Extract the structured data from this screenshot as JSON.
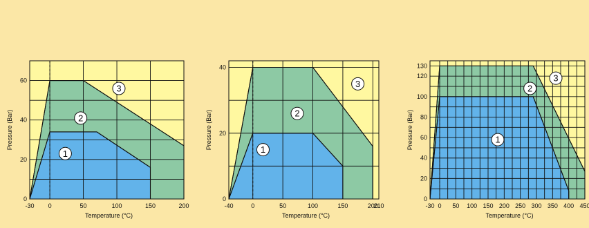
{
  "colors": {
    "page_background": "#fbe7a6",
    "zone_3": "#fff8a0",
    "zone_2": "#8dc9a4",
    "zone_1": "#62b3ea",
    "grid": "#111111",
    "badge_fill": "#ffffff"
  },
  "chart_data": [
    {
      "type": "area",
      "xlabel": "Temperature (°C)",
      "ylabel": "Pressure (Bar)",
      "xlim": [
        -30,
        200
      ],
      "ylim": [
        0,
        70
      ],
      "xticks": [
        -30,
        0,
        50,
        100,
        150,
        200
      ],
      "yticks": [
        0,
        20,
        40,
        60
      ],
      "x_grid": [
        -30,
        0,
        50,
        100,
        150,
        200
      ],
      "y_grid": [
        0,
        10,
        20,
        30,
        40,
        50,
        60,
        70
      ],
      "ref_line_x": 0,
      "series": [
        {
          "label": "3",
          "points": [
            [
              -30,
              0
            ],
            [
              200,
              0
            ],
            [
              200,
              70
            ],
            [
              -30,
              70
            ]
          ],
          "badge": [
            103,
            56
          ]
        },
        {
          "label": "2",
          "points": [
            [
              -30,
              0
            ],
            [
              0,
              60
            ],
            [
              50,
              60
            ],
            [
              200,
              27
            ],
            [
              200,
              0
            ]
          ],
          "badge": [
            46,
            41
          ]
        },
        {
          "label": "1",
          "points": [
            [
              -30,
              0
            ],
            [
              0,
              34
            ],
            [
              70,
              34
            ],
            [
              150,
              16
            ],
            [
              150,
              0
            ]
          ],
          "badge": [
            23,
            23
          ]
        }
      ]
    },
    {
      "type": "area",
      "xlabel": "Temperature (°C)",
      "ylabel": "Pressure (Bar)",
      "xlim": [
        -40,
        210
      ],
      "ylim": [
        0,
        42
      ],
      "xticks": [
        -40,
        0,
        50,
        100,
        150,
        200,
        210
      ],
      "yticks": [
        0,
        20,
        40
      ],
      "x_grid": [
        -40,
        0,
        50,
        100,
        150,
        200,
        210
      ],
      "y_grid": [
        0,
        10,
        20,
        30,
        40
      ],
      "ref_line_x": 0,
      "series": [
        {
          "label": "3",
          "points": [
            [
              -40,
              0
            ],
            [
              210,
              0
            ],
            [
              210,
              42
            ],
            [
              -40,
              42
            ]
          ],
          "badge": [
            175,
            35
          ]
        },
        {
          "label": "2",
          "points": [
            [
              -40,
              0
            ],
            [
              0,
              40
            ],
            [
              100,
              40
            ],
            [
              200,
              16
            ],
            [
              200,
              0
            ]
          ],
          "badge": [
            74,
            26
          ]
        },
        {
          "label": "1",
          "points": [
            [
              -40,
              0
            ],
            [
              0,
              20
            ],
            [
              100,
              20
            ],
            [
              150,
              10
            ],
            [
              150,
              0
            ]
          ],
          "badge": [
            17,
            15
          ]
        }
      ]
    },
    {
      "type": "area",
      "xlabel": "Temperature (°C)",
      "ylabel": "Pressure (Bar)",
      "xlim": [
        -30,
        450
      ],
      "ylim": [
        0,
        135
      ],
      "xticks": [
        -30,
        0,
        50,
        100,
        150,
        200,
        250,
        300,
        350,
        400,
        450
      ],
      "yticks": [
        0,
        20,
        40,
        60,
        80,
        100,
        120,
        130
      ],
      "x_grid": [
        -30,
        0,
        25,
        50,
        75,
        100,
        125,
        150,
        175,
        200,
        225,
        250,
        275,
        300,
        325,
        350,
        375,
        400,
        425,
        450
      ],
      "y_grid": [
        0,
        10,
        20,
        30,
        40,
        50,
        60,
        70,
        80,
        90,
        100,
        110,
        120,
        130
      ],
      "ref_line_x": 0,
      "series": [
        {
          "label": "3",
          "points": [
            [
              -30,
              0
            ],
            [
              450,
              0
            ],
            [
              450,
              135
            ],
            [
              -30,
              135
            ]
          ],
          "badge": [
            360,
            118
          ]
        },
        {
          "label": "2",
          "points": [
            [
              -30,
              0
            ],
            [
              0,
              130
            ],
            [
              290,
              130
            ],
            [
              450,
              27
            ],
            [
              450,
              0
            ]
          ],
          "badge": [
            280,
            108
          ]
        },
        {
          "label": "1",
          "points": [
            [
              -30,
              0
            ],
            [
              0,
              100
            ],
            [
              290,
              100
            ],
            [
              400,
              8
            ],
            [
              400,
              0
            ]
          ],
          "badge": [
            180,
            58
          ]
        }
      ]
    }
  ]
}
